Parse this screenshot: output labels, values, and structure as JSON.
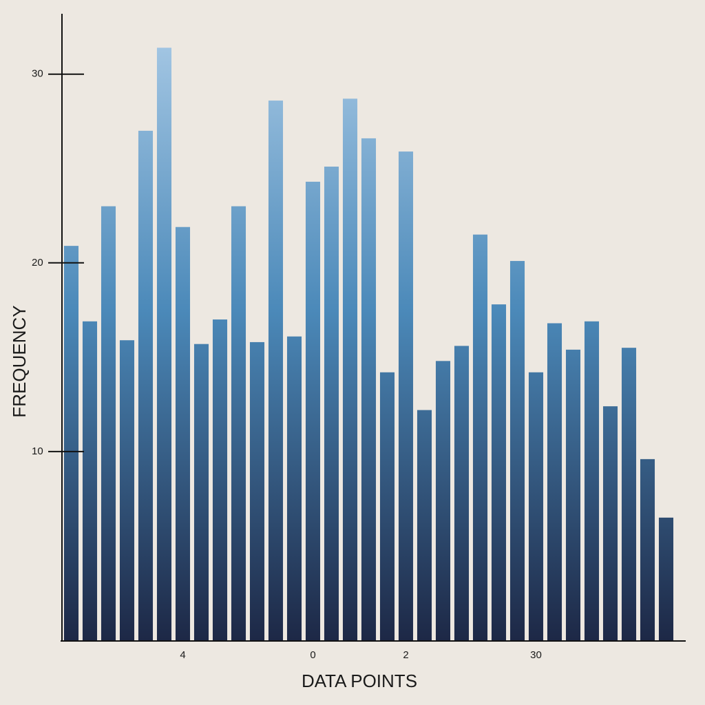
{
  "chart_data": {
    "type": "bar",
    "x_label": "DATA POINTS",
    "y_label": "FREQUENCY",
    "categories": [
      null,
      null,
      null,
      null,
      null,
      null,
      "4",
      null,
      null,
      null,
      null,
      null,
      null,
      "0",
      null,
      null,
      null,
      null,
      "2",
      null,
      null,
      null,
      null,
      null,
      null,
      "30",
      null,
      null,
      null,
      null,
      null,
      null,
      null
    ],
    "values": [
      20.9,
      16.9,
      23.0,
      15.9,
      27.0,
      31.4,
      21.9,
      15.7,
      17.0,
      23.0,
      15.8,
      28.6,
      16.1,
      24.3,
      25.1,
      28.7,
      26.6,
      14.2,
      25.9,
      12.2,
      14.8,
      15.6,
      21.5,
      17.8,
      20.1,
      14.2,
      16.8,
      15.4,
      16.9,
      12.4,
      15.5,
      9.6,
      6.5
    ],
    "color": [
      "#a3c6e3",
      "#1d2846"
    ],
    "ylim": [
      0,
      33.2
    ],
    "yticks": [
      10,
      20,
      30
    ]
  }
}
